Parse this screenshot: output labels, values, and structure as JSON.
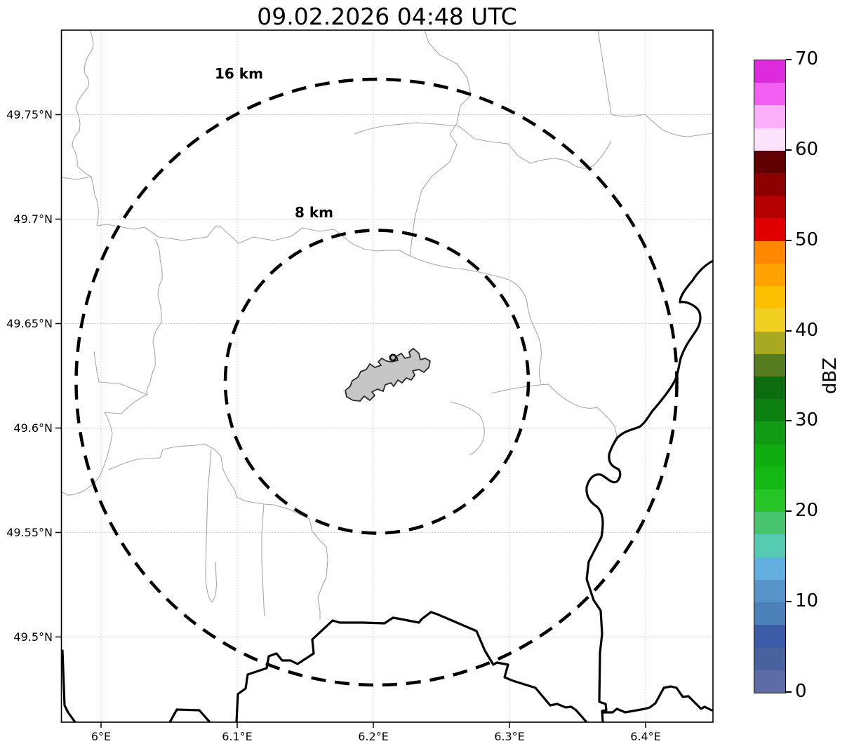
{
  "title": "09.02.2026 04:48 UTC",
  "map": {
    "x_axis": {
      "ticks": [
        "6°E",
        "6.1°E",
        "6.2°E",
        "6.3°E",
        "6.4°E"
      ]
    },
    "y_axis": {
      "ticks": [
        "49.75°N",
        "49.7°N",
        "49.65°N",
        "49.6°N",
        "49.55°N",
        "49.5°N"
      ]
    },
    "range_rings": [
      {
        "label": "16 km"
      },
      {
        "label": "8 km"
      }
    ]
  },
  "colorbar": {
    "label": "dBZ",
    "ticks": [
      "0",
      "10",
      "20",
      "30",
      "40",
      "50",
      "60",
      "70"
    ],
    "colors": [
      "#5e6ca6",
      "#47629f",
      "#3a5ba5",
      "#4b81b8",
      "#5694c9",
      "#63afdf",
      "#55ccb1",
      "#48c46e",
      "#27c427",
      "#14b814",
      "#10ad10",
      "#0f9b13",
      "#0d8012",
      "#0c6c10",
      "#557d1f",
      "#a9a921",
      "#f0d020",
      "#fdc000",
      "#ffa200",
      "#ff8800",
      "#e00000",
      "#b50000",
      "#8d0000",
      "#610000",
      "#fde2fd",
      "#fbaffb",
      "#f25ff2",
      "#dc2adc"
    ]
  }
}
